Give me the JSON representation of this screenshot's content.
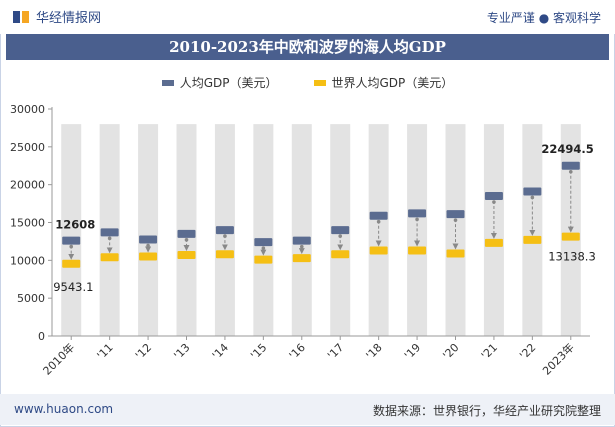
{
  "header": {
    "brand": "华经情报网",
    "tagline": "专业严谨 ● 客观科学"
  },
  "chart_data": {
    "type": "dot",
    "title": "2010-2023年中欧和波罗的海人均GDP",
    "categories": [
      "2010年",
      "'11",
      "'12",
      "'13",
      "'14",
      "'15",
      "'16",
      "'17",
      "'18",
      "'19",
      "'20",
      "'21",
      "'22",
      "2023年"
    ],
    "series": [
      {
        "name": "人均GDP（美元）",
        "color": "#5b6c90",
        "values": [
          12608,
          13700,
          12750,
          13500,
          14000,
          12400,
          12600,
          14000,
          15900,
          16200,
          16100,
          18500,
          19100,
          22494.5
        ]
      },
      {
        "name": "世界人均GDP（美元）",
        "color": "#f5bf14",
        "values": [
          9543.1,
          10400,
          10500,
          10700,
          10800,
          10100,
          10300,
          10800,
          11300,
          11300,
          10900,
          12300,
          12700,
          13138.3
        ]
      }
    ],
    "data_labels": {
      "first_top": "12608",
      "first_bottom": "9543.1",
      "last_top": "22494.5",
      "last_bottom": "13138.3"
    },
    "y_ticks": [
      "0",
      "5000",
      "10000",
      "15000",
      "20000",
      "25000",
      "30000"
    ],
    "ylim": [
      0,
      30000
    ],
    "band_top": 28000,
    "band_color": "#e3e3e3",
    "grid": false,
    "legend_position": "top-center"
  },
  "footer": {
    "url": "www.huaon.com",
    "source": "数据来源：世界银行，华经产业研究院整理"
  }
}
